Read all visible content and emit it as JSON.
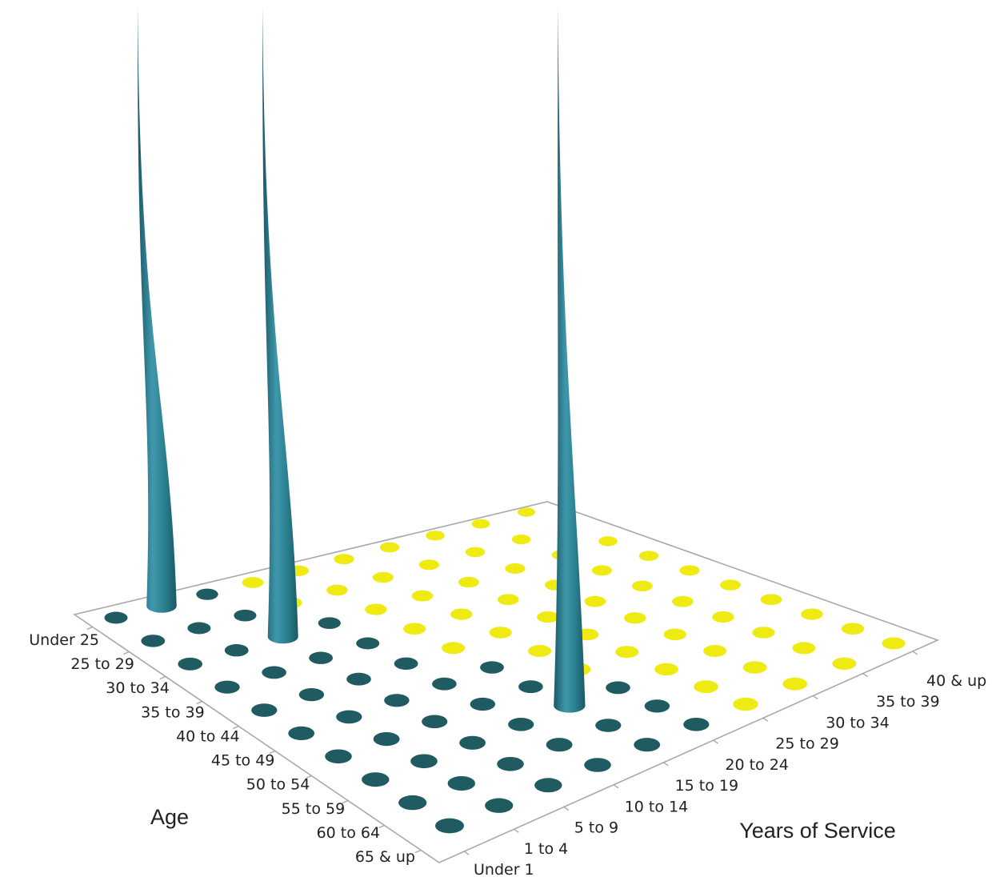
{
  "chart_data": {
    "type": "3d-surface",
    "x_axis": {
      "label": "Years of Service",
      "categories": [
        "Under 1",
        "1 to 4",
        "5 to 9",
        "10 to 14",
        "15 to 19",
        "20 to 24",
        "25 to 29",
        "30 to 34",
        "35 to 39",
        "40 & up"
      ]
    },
    "y_axis": {
      "label": "Age",
      "categories": [
        "Under 25",
        "25 to 29",
        "30 to 34",
        "35 to 39",
        "40 to 44",
        "45 to 49",
        "50 to 54",
        "55 to 59",
        "60 to 64",
        "65 & up"
      ]
    },
    "floor_dots": {
      "Under 25": [
        "dark",
        "dark",
        "dark",
        "yellow",
        "yellow",
        "yellow",
        "yellow",
        "yellow",
        "yellow",
        "yellow"
      ],
      "25 to 29": [
        "dark",
        "dark",
        "dark",
        "yellow",
        "yellow",
        "yellow",
        "yellow",
        "yellow",
        "yellow",
        "yellow"
      ],
      "30 to 34": [
        "dark",
        "dark",
        "dark",
        "dark",
        "yellow",
        "yellow",
        "yellow",
        "yellow",
        "yellow",
        "yellow"
      ],
      "35 to 39": [
        "dark",
        "dark",
        "dark",
        "dark",
        "yellow",
        "yellow",
        "yellow",
        "yellow",
        "yellow",
        "yellow"
      ],
      "40 to 44": [
        "dark",
        "dark",
        "dark",
        "dark",
        "yellow",
        "yellow",
        "yellow",
        "yellow",
        "yellow",
        "yellow"
      ],
      "45 to 49": [
        "dark",
        "dark",
        "dark",
        "dark",
        "dark",
        "yellow",
        "yellow",
        "yellow",
        "yellow",
        "yellow"
      ],
      "50 to 54": [
        "dark",
        "dark",
        "dark",
        "dark",
        "dark",
        "yellow",
        "yellow",
        "yellow",
        "yellow",
        "yellow"
      ],
      "55 to 59": [
        "dark",
        "dark",
        "dark",
        "dark",
        "dark",
        "dark",
        "yellow",
        "yellow",
        "yellow",
        "yellow"
      ],
      "60 to 64": [
        "dark",
        "dark",
        "dark",
        "dark",
        "dark",
        "dark",
        "yellow",
        "yellow",
        "yellow",
        "yellow"
      ],
      "65 & up": [
        "dark",
        "dark",
        "dark",
        "dark",
        "dark",
        "dark",
        "yellow",
        "yellow",
        "yellow",
        "yellow"
      ]
    },
    "spikes": [
      {
        "age": "Under 25",
        "service": "1 to 4",
        "relative_height": 1.0
      },
      {
        "age": "30 to 34",
        "service": "5 to 9",
        "relative_height": 1.0
      },
      {
        "age": "55 to 59",
        "service": "15 to 19",
        "relative_height": 1.0
      }
    ],
    "colors": {
      "dark_dot": "#1f5b60",
      "yellow_dot": "#eeea12",
      "spike_light": "#3f98ac",
      "spike_mid": "#2a7e8e",
      "spike_dark": "#1a5866",
      "frame": "#a8a8a8"
    }
  }
}
